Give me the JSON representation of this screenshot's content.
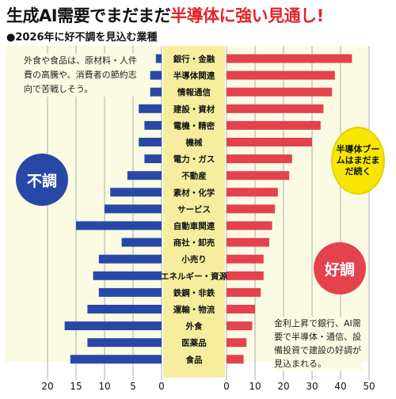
{
  "headline": {
    "part_black": "生成AI需要でまだまだ",
    "part_red": "半導体に強い見通し!"
  },
  "subhead": "●2026年に好不調を見込む業種",
  "left_note": "外食や食品は、原材料・人件費の高騰や、消費者の節約志向で苦戦しそう。",
  "right_note": "金利上昇で銀行、AI需要で半導体・通信、設備投資で建設の好調が見込まれる。",
  "bubble": "半導体ブームはまだまだ続く",
  "badge_bad": "不調",
  "badge_good": "好調",
  "colors": {
    "bad": "#2848a8",
    "good": "#e4424d",
    "panel": "#fbfbe3",
    "label_panel": "#f6ee9e",
    "bubble": "#f6e600"
  },
  "chart_data": {
    "type": "bar",
    "orientation": "horizontal-butterfly",
    "categories": [
      "銀行・金融",
      "半導体関連",
      "情報通信",
      "建設・資材",
      "電機・精密",
      "機械",
      "電力・ガス",
      "不動産",
      "素材・化学",
      "サービス",
      "自動車関連",
      "商社・卸売",
      "小売り",
      "エネルギー・資源",
      "鉄鋼・非鉄",
      "運輸・物流",
      "外食",
      "医薬品",
      "食品"
    ],
    "series": [
      {
        "name": "不調",
        "values": [
          1,
          2,
          2,
          4,
          3,
          4,
          3,
          6,
          9,
          10,
          15,
          7,
          11,
          12,
          11,
          13,
          17,
          13,
          16
        ]
      },
      {
        "name": "好調",
        "values": [
          44,
          38,
          37,
          34,
          33,
          30,
          23,
          22,
          18,
          17,
          16,
          15,
          13,
          13,
          12,
          10,
          9,
          7,
          6
        ]
      }
    ],
    "left_axis": {
      "ticks": [
        20,
        15,
        10,
        5,
        0
      ],
      "range": [
        0,
        20
      ]
    },
    "right_axis": {
      "ticks": [
        0,
        10,
        20,
        30,
        40,
        50
      ],
      "range": [
        0,
        50
      ]
    },
    "grid": true
  }
}
